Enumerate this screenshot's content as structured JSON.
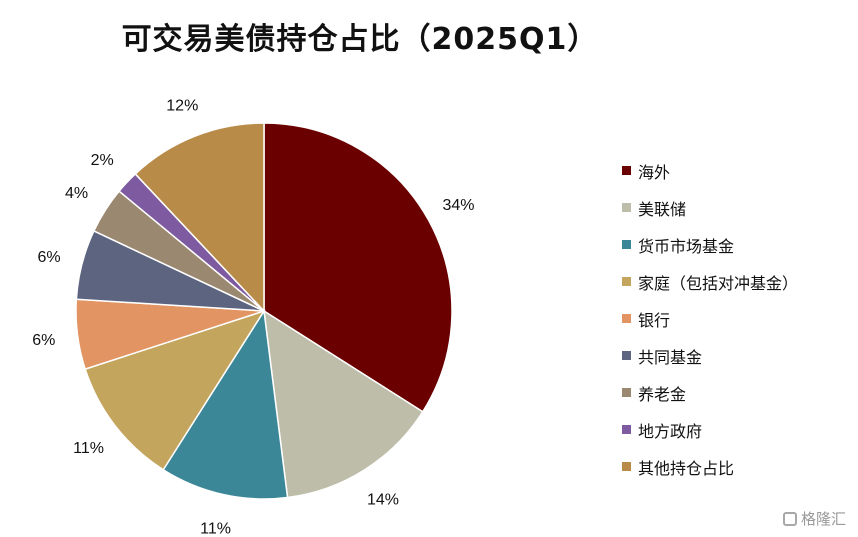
{
  "chart_data": {
    "type": "pie",
    "title": "可交易美债持仓占比（2025Q1）",
    "slices": [
      {
        "label": "海外",
        "value": 34,
        "display": "34%",
        "color": "#6b0000"
      },
      {
        "label": "美联储",
        "value": 14,
        "display": "14%",
        "color": "#bebdaa"
      },
      {
        "label": "货币市场基金",
        "value": 11,
        "display": "11%",
        "color": "#3b8798"
      },
      {
        "label": "家庭（包括对冲基金）",
        "value": 11,
        "display": "11%",
        "color": "#c3a55d"
      },
      {
        "label": "银行",
        "value": 6,
        "display": "6%",
        "color": "#e29463"
      },
      {
        "label": "共同基金",
        "value": 6,
        "display": "6%",
        "color": "#5c6480"
      },
      {
        "label": "养老金",
        "value": 4,
        "display": "4%",
        "color": "#9b8870"
      },
      {
        "label": "地方政府",
        "value": 2,
        "display": "2%",
        "color": "#7e5aa0"
      },
      {
        "label": "其他持仓占比",
        "value": 12,
        "display": "12%",
        "color": "#b88c48"
      }
    ],
    "legend_position": "right"
  },
  "watermark": {
    "text": "格隆汇"
  }
}
